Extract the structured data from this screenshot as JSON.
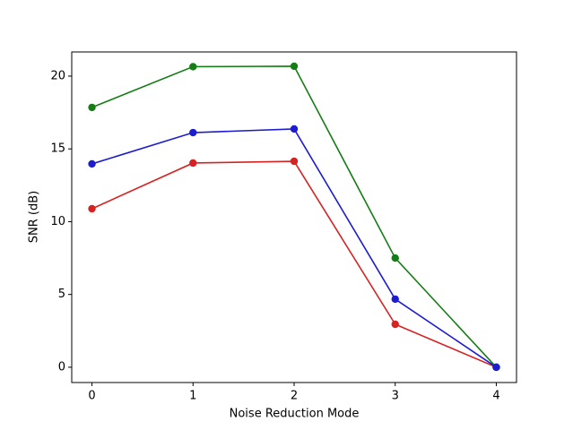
{
  "chart_data": {
    "type": "line",
    "xlabel": "Noise Reduction Mode",
    "ylabel": "SNR (dB)",
    "x": [
      0,
      1,
      2,
      3,
      4
    ],
    "series": [
      {
        "color": "#d62222",
        "values": [
          10.89,
          14.03,
          14.15,
          2.95,
          0
        ]
      },
      {
        "color": "#157d15",
        "values": [
          17.85,
          20.65,
          20.68,
          7.5,
          0
        ]
      },
      {
        "color": "#1c1cd0",
        "values": [
          13.97,
          16.12,
          16.37,
          4.68,
          0
        ]
      }
    ],
    "xlim": [
      -0.2,
      4.2
    ],
    "xticks": [
      0,
      1,
      2,
      3,
      4
    ],
    "ylim": [
      -1.05,
      21.66
    ],
    "yticks": [
      0,
      5,
      10,
      15,
      20
    ]
  }
}
